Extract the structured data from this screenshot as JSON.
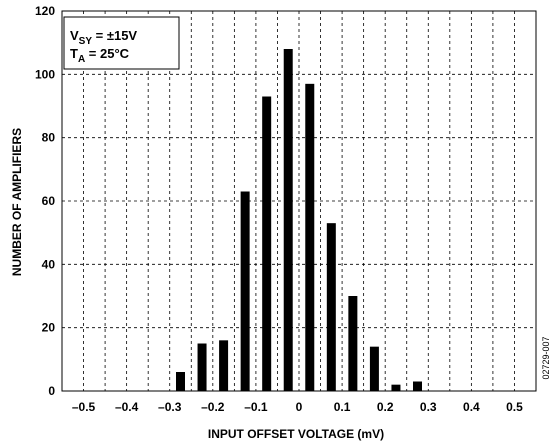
{
  "chart_data": {
    "type": "bar",
    "xlabel": "INPUT OFFSET VOLTAGE (mV)",
    "ylabel": "NUMBER OF AMPLIFIERS",
    "xlim": [
      -0.55,
      0.55
    ],
    "ylim": [
      0,
      120
    ],
    "x_ticks": [
      -0.5,
      -0.4,
      -0.3,
      -0.2,
      -0.1,
      0,
      0.1,
      0.2,
      0.3,
      0.4,
      0.5
    ],
    "x_tick_labels": [
      "–0.5",
      "–0.4",
      "–0.3",
      "–0.2",
      "–0.1",
      "0",
      "0.1",
      "0.2",
      "0.3",
      "0.4",
      "0.5"
    ],
    "y_ticks": [
      0,
      20,
      40,
      60,
      80,
      100,
      120
    ],
    "grid": "dashed",
    "x": [
      -0.275,
      -0.225,
      -0.175,
      -0.125,
      -0.075,
      -0.025,
      0.025,
      0.075,
      0.125,
      0.175,
      0.225,
      0.275
    ],
    "values": [
      6,
      15,
      16,
      63,
      93,
      108,
      97,
      53,
      30,
      14,
      2,
      3
    ],
    "legend": {
      "placement": "top-left",
      "line1_main": "V",
      "line1_sub": "SY",
      "line1_rest": " = ±15V",
      "line2_main": "T",
      "line2_sub": "A",
      "line2_rest": " = 25°C"
    }
  },
  "figure_code": "02729-007"
}
